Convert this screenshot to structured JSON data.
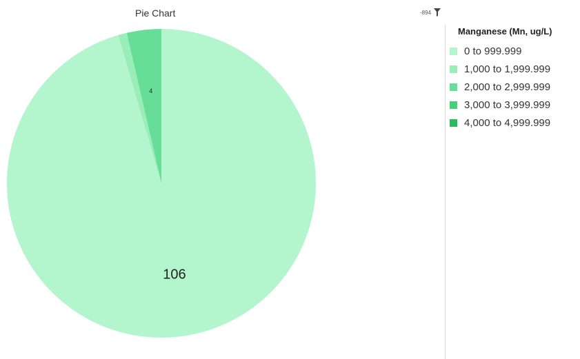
{
  "chart_data": {
    "type": "pie",
    "title": "Pie Chart",
    "legend_title": "Manganese (Mn, ug/L)",
    "legend_placement": "right",
    "slices": [
      {
        "label": "0 to 999.999",
        "value": 106,
        "color": "#b3f5cd",
        "data_label": "106"
      },
      {
        "label": "1,000 to 1,999.999",
        "value": 1,
        "color": "#98edb9",
        "data_label": ""
      },
      {
        "label": "2,000 to 2,999.999",
        "value": 4,
        "color": "#67de97",
        "data_label": "4"
      },
      {
        "label": "3,000 to 3,999.999",
        "value": 0,
        "color": "#45cf78",
        "data_label": ""
      },
      {
        "label": "4,000 to 4,999.999",
        "value": 0,
        "color": "#2bba5f",
        "data_label": ""
      }
    ]
  },
  "filter": {
    "value_label": "-894",
    "icon": "filter-funnel-icon"
  }
}
